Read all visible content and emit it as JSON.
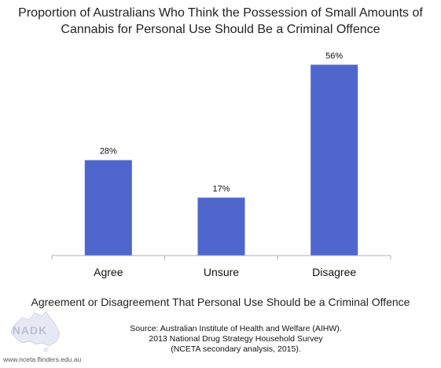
{
  "chart_data": {
    "type": "bar",
    "title_lines": [
      "Proportion of Australians Who Think the Possession of Small Amounts of",
      "Cannabis for Personal Use Should Be a Criminal Offence"
    ],
    "categories": [
      "Agree",
      "Unsure",
      "Disagree"
    ],
    "values": [
      28,
      17,
      56
    ],
    "value_labels": [
      "28%",
      "17%",
      "56%"
    ],
    "xlabel": "Agreement or Disagreement That Personal Use Should be a Criminal Offence",
    "ylabel": "",
    "ylim": [
      0,
      60
    ],
    "grid": false,
    "bar_color": "#4f66cc"
  },
  "source_lines": [
    "Source: Australian Institute of Health and Welfare (AIHW).",
    "2013 National Drug Strategy Household Survey",
    "(NCETA secondary analysis, 2015)."
  ],
  "logo": {
    "text": "NADK",
    "url": "www.nceta.flinders.edu.au",
    "icon": "australia-map-logo"
  }
}
